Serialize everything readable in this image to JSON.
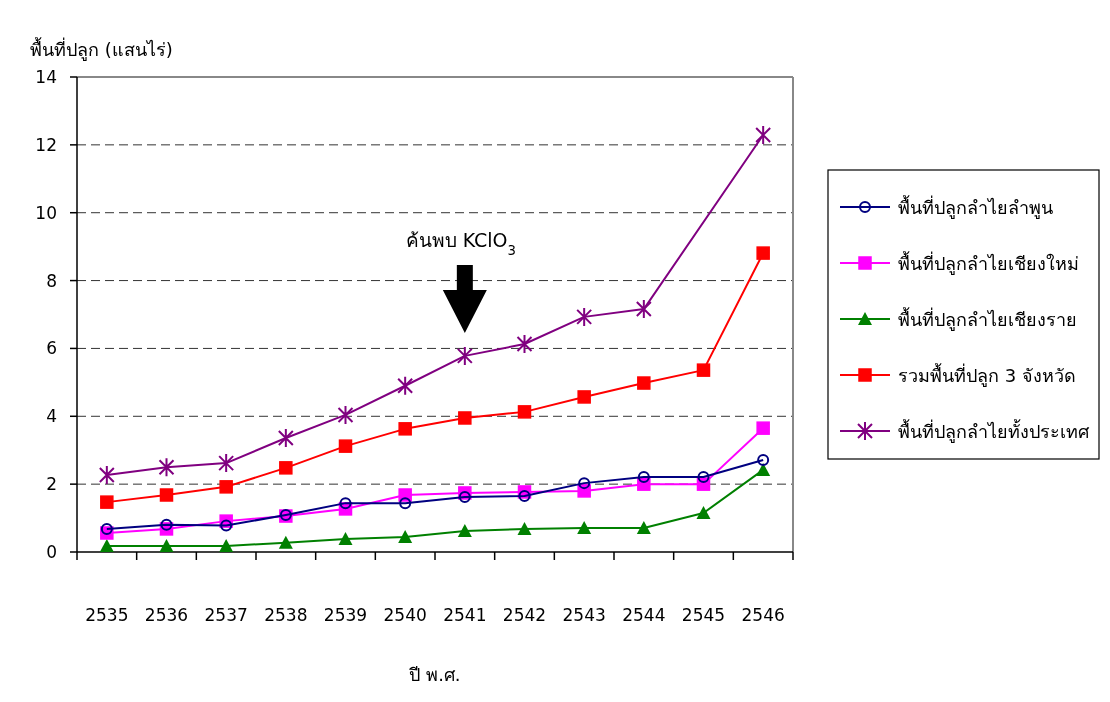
{
  "chart_data": {
    "type": "line",
    "xlabel": "ปี พ.ศ.",
    "ylabel": "พื้นที่ปลูก (แสนไร่)",
    "categories": [
      "2535",
      "2536",
      "2537",
      "2538",
      "2539",
      "2540",
      "2541",
      "2542",
      "2543",
      "2544",
      "2545",
      "2546"
    ],
    "ylim": [
      0,
      14
    ],
    "yticks": [
      0,
      2,
      4,
      6,
      8,
      10,
      12,
      14
    ],
    "grid": "y",
    "legend": "right",
    "annotations": [
      "ค้นพบ KClO$_{3}$"
    ],
    "series": [
      {
        "name": "พื้นที่ปลูกลำไยลำพูน",
        "color": "#000080",
        "marker": "circle",
        "values": [
          0.68,
          0.8,
          0.78,
          1.09,
          1.44,
          1.44,
          1.62,
          1.65,
          2.03,
          2.21,
          2.21,
          2.71
        ]
      },
      {
        "name": "พื้นที่ปลูกลำไยเชียงใหม่",
        "color": "#ff00ff",
        "marker": "square",
        "values": [
          0.56,
          0.68,
          0.91,
          1.06,
          1.27,
          1.68,
          1.74,
          1.77,
          1.8,
          2.0,
          2.0,
          3.65
        ]
      },
      {
        "name": "พื้นที่ปลูกลำไยเชียงราย",
        "color": "#008000",
        "marker": "triangle",
        "values": [
          0.18,
          0.18,
          0.18,
          0.27,
          0.38,
          0.44,
          0.62,
          0.68,
          0.71,
          0.71,
          1.15,
          2.42
        ]
      },
      {
        "name": "รวมพื้นที่ปลูก 3 จังหวัด",
        "color": "#ff0000",
        "marker": "square",
        "values": [
          1.47,
          1.68,
          1.92,
          2.48,
          3.12,
          3.63,
          3.95,
          4.13,
          4.57,
          4.98,
          5.36,
          8.81
        ]
      },
      {
        "name": "พื้นที่ปลูกลำไยทั้งประเทศ",
        "color": "#800080",
        "marker": "cross",
        "values": [
          2.27,
          2.5,
          2.62,
          3.36,
          4.04,
          4.9,
          5.78,
          6.13,
          6.93,
          7.16,
          null,
          12.29
        ]
      }
    ]
  }
}
